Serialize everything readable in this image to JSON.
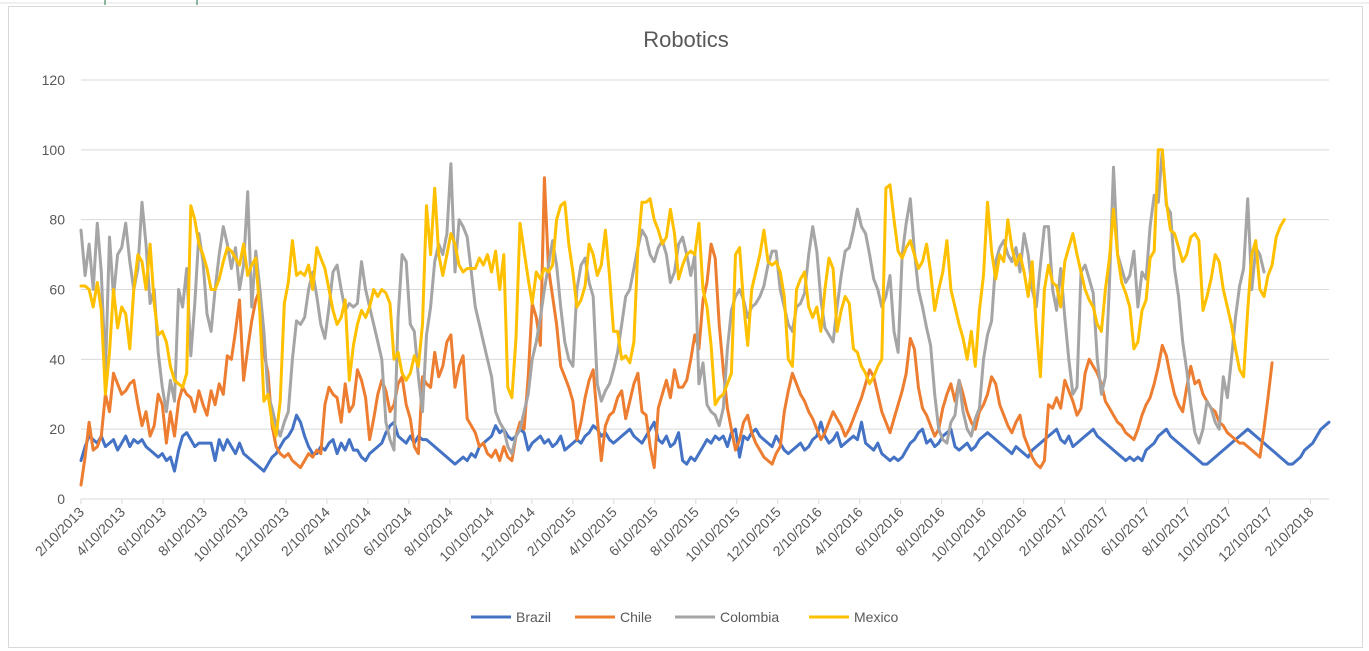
{
  "colors": {
    "Brazil": "#4472c4",
    "Chile": "#ed7d31",
    "Colombia": "#a5a5a5",
    "Mexico": "#ffc000",
    "gridline": "#d9d9d9",
    "axis_text": "#595959"
  },
  "chart_data": {
    "type": "line",
    "title": "Robotics",
    "xlabel": "",
    "ylabel": "",
    "ylim": [
      0,
      120
    ],
    "yticks": [
      0,
      20,
      40,
      60,
      80,
      100,
      120
    ],
    "grid": "horizontal",
    "legend_position": "bottom",
    "x_start": "2/10/2013",
    "x_step": "1 week",
    "x_ticks": [
      "2/10/2013",
      "4/10/2013",
      "6/10/2013",
      "8/10/2013",
      "10/10/2013",
      "12/10/2013",
      "2/10/2014",
      "4/10/2014",
      "6/10/2014",
      "8/10/2014",
      "10/10/2014",
      "12/10/2014",
      "2/10/2015",
      "4/10/2015",
      "6/10/2015",
      "8/10/2015",
      "10/10/2015",
      "12/10/2015",
      "2/10/2016",
      "4/10/2016",
      "6/10/2016",
      "8/10/2016",
      "10/10/2016",
      "12/10/2016",
      "2/10/2017",
      "4/10/2017",
      "6/10/2017",
      "8/10/2017",
      "10/10/2017",
      "12/10/2017",
      "2/10/2018"
    ],
    "series": [
      {
        "name": "Brazil",
        "values": [
          11,
          15,
          18,
          17,
          16,
          18,
          15,
          16,
          17,
          14,
          16,
          18,
          15,
          17,
          16,
          17,
          15,
          14,
          13,
          12,
          13,
          11,
          12,
          8,
          14,
          18,
          19,
          17,
          15,
          16,
          16,
          16,
          16,
          11,
          17,
          14,
          17,
          15,
          13,
          16,
          13,
          12,
          11,
          10,
          9,
          8,
          10,
          12,
          13,
          15,
          17,
          18,
          20,
          24,
          22,
          18,
          15,
          13,
          13,
          15,
          14,
          16,
          17,
          13,
          16,
          14,
          17,
          14,
          14,
          12,
          11,
          13,
          14,
          15,
          16,
          19,
          21,
          22,
          18,
          17,
          16,
          18,
          16,
          18,
          17,
          17,
          16,
          15,
          14,
          13,
          12,
          11,
          10,
          11,
          12,
          11,
          13,
          12,
          15,
          16,
          17,
          18,
          21,
          19,
          20,
          18,
          17,
          18,
          20,
          19,
          14,
          16,
          17,
          18,
          16,
          17,
          15,
          16,
          18,
          14,
          15,
          16,
          17,
          16,
          18,
          19,
          21,
          20,
          18,
          19,
          17,
          16,
          17,
          18,
          19,
          20,
          18,
          17,
          16,
          18,
          20,
          22,
          17,
          16,
          18,
          15,
          16,
          19,
          11,
          10,
          12,
          11,
          13,
          15,
          17,
          16,
          18,
          17,
          18,
          15,
          19,
          20,
          12,
          18,
          17,
          19,
          20,
          18,
          17,
          16,
          15,
          18,
          16,
          14,
          13,
          14,
          15,
          16,
          14,
          15,
          17,
          18,
          22,
          18,
          16,
          17,
          19,
          15,
          16,
          17,
          18,
          17,
          22,
          16,
          15,
          14,
          16,
          13,
          12,
          11,
          12,
          11,
          12,
          14,
          16,
          17,
          19,
          20,
          16,
          17,
          15,
          16,
          18,
          19,
          20,
          15,
          14,
          15,
          16,
          14,
          15,
          17,
          18,
          19,
          18,
          17,
          16,
          15,
          14,
          13,
          15,
          14,
          13,
          12,
          14,
          15,
          16,
          17,
          18,
          19,
          20,
          17,
          16,
          18,
          15,
          16,
          17,
          18,
          19,
          20,
          18,
          17,
          16,
          15,
          14,
          13,
          12,
          11,
          12,
          11,
          12,
          11,
          14,
          15,
          16,
          18,
          19,
          20,
          18,
          17,
          16,
          15,
          14,
          13,
          12,
          11,
          10,
          10,
          11,
          12,
          13,
          14,
          15,
          16,
          17,
          18,
          19,
          20,
          19,
          18,
          17,
          16,
          15,
          14,
          13,
          12,
          11,
          10,
          10,
          11,
          12,
          14,
          15,
          16,
          18,
          20,
          21,
          22
        ]
      },
      {
        "name": "Chile",
        "values": [
          4,
          12,
          22,
          14,
          15,
          18,
          30,
          25,
          36,
          33,
          30,
          31,
          33,
          34,
          27,
          21,
          25,
          18,
          21,
          30,
          27,
          16,
          25,
          18,
          28,
          32,
          30,
          29,
          25,
          31,
          27,
          24,
          31,
          27,
          33,
          30,
          41,
          40,
          48,
          57,
          34,
          43,
          51,
          57,
          60,
          42,
          36,
          21,
          15,
          13,
          12,
          13,
          11,
          10,
          9,
          11,
          13,
          12,
          14,
          13,
          27,
          32,
          30,
          29,
          22,
          33,
          25,
          27,
          37,
          34,
          29,
          17,
          23,
          30,
          34,
          31,
          25,
          27,
          33,
          35,
          27,
          23,
          15,
          13,
          35,
          33,
          32,
          42,
          35,
          38,
          45,
          47,
          32,
          38,
          41,
          23,
          21,
          19,
          15,
          16,
          13,
          12,
          14,
          11,
          15,
          12,
          11,
          18,
          22,
          20,
          35,
          56,
          52,
          44,
          92,
          66,
          58,
          50,
          38,
          35,
          32,
          28,
          17,
          22,
          29,
          34,
          37,
          23,
          11,
          21,
          24,
          25,
          29,
          31,
          23,
          28,
          33,
          36,
          25,
          24,
          15,
          9,
          26,
          30,
          34,
          29,
          37,
          32,
          32,
          34,
          40,
          47,
          43,
          57,
          62,
          73,
          69,
          50,
          37,
          26,
          20,
          14,
          17,
          22,
          24,
          19,
          16,
          14,
          12,
          11,
          10,
          13,
          15,
          25,
          31,
          36,
          33,
          30,
          28,
          25,
          23,
          20,
          17,
          19,
          22,
          25,
          23,
          21,
          18,
          20,
          23,
          26,
          29,
          33,
          37,
          35,
          30,
          25,
          22,
          19,
          23,
          27,
          31,
          36,
          46,
          43,
          32,
          26,
          24,
          21,
          18,
          20,
          26,
          30,
          33,
          28,
          34,
          30,
          25,
          22,
          20,
          25,
          27,
          30,
          35,
          33,
          27,
          24,
          21,
          19,
          22,
          24,
          18,
          15,
          12,
          10,
          9,
          11,
          27,
          26,
          29,
          26,
          34,
          31,
          28,
          24,
          26,
          36,
          40,
          38,
          36,
          33,
          28,
          26,
          24,
          22,
          21,
          19,
          18,
          17,
          20,
          24,
          27,
          29,
          33,
          38,
          44,
          41,
          35,
          30,
          27,
          25,
          32,
          38,
          33,
          34,
          30,
          28,
          26,
          25,
          22,
          21,
          19,
          18,
          17,
          16,
          16,
          15,
          14,
          13,
          12,
          20,
          29,
          39
        ]
      },
      {
        "name": "Colombia",
        "values": [
          77,
          64,
          73,
          60,
          79,
          65,
          36,
          75,
          58,
          70,
          72,
          79,
          68,
          60,
          66,
          85,
          73,
          56,
          60,
          42,
          32,
          25,
          34,
          28,
          60,
          55,
          66,
          41,
          56,
          76,
          68,
          53,
          48,
          60,
          70,
          78,
          73,
          66,
          72,
          60,
          67,
          88,
          55,
          71,
          60,
          48,
          30,
          26,
          21,
          18,
          22,
          25,
          40,
          51,
          50,
          52,
          60,
          65,
          58,
          50,
          46,
          55,
          65,
          67,
          60,
          54,
          56,
          55,
          56,
          68,
          60,
          55,
          50,
          45,
          40,
          22,
          17,
          14,
          52,
          70,
          68,
          50,
          48,
          35,
          25,
          47,
          55,
          68,
          73,
          70,
          76,
          96,
          65,
          80,
          78,
          75,
          65,
          55,
          50,
          45,
          40,
          35,
          25,
          22,
          20,
          15,
          13,
          18,
          20,
          25,
          30,
          40,
          45,
          52,
          60,
          67,
          74,
          67,
          55,
          45,
          40,
          38,
          60,
          67,
          69,
          62,
          58,
          33,
          28,
          31,
          33,
          37,
          42,
          50,
          58,
          60,
          66,
          72,
          77,
          75,
          70,
          68,
          72,
          74,
          70,
          62,
          65,
          73,
          75,
          70,
          64,
          70,
          33,
          39,
          27,
          25,
          24,
          21,
          26,
          43,
          54,
          58,
          60,
          57,
          52,
          55,
          56,
          58,
          61,
          67,
          71,
          71,
          60,
          55,
          50,
          48,
          55,
          56,
          59,
          70,
          78,
          71,
          57,
          49,
          47,
          45,
          55,
          64,
          71,
          72,
          77,
          83,
          78,
          76,
          70,
          63,
          60,
          55,
          58,
          64,
          48,
          42,
          70,
          79,
          86,
          71,
          60,
          55,
          49,
          44,
          30,
          20,
          17,
          16,
          22,
          24,
          34,
          25,
          20,
          18,
          23,
          26,
          40,
          47,
          51,
          68,
          72,
          74,
          70,
          68,
          72,
          65,
          76,
          70,
          60,
          55,
          67,
          78,
          78,
          60,
          54,
          66,
          52,
          40,
          30,
          32,
          65,
          67,
          63,
          59,
          40,
          30,
          35,
          62,
          95,
          70,
          66,
          62,
          64,
          71,
          55,
          65,
          63,
          78,
          87,
          85,
          100,
          84,
          82,
          66,
          58,
          45,
          37,
          27,
          19,
          16,
          20,
          28,
          26,
          22,
          20,
          35,
          29,
          40,
          52,
          61,
          66,
          86,
          60,
          72,
          70,
          65
        ]
      },
      {
        "name": "Mexico",
        "values": [
          61,
          61,
          60,
          55,
          62,
          54,
          30,
          42,
          60,
          49,
          55,
          53,
          43,
          60,
          70,
          68,
          60,
          73,
          56,
          47,
          48,
          45,
          38,
          34,
          33,
          32,
          36,
          84,
          80,
          73,
          70,
          66,
          60,
          60,
          63,
          68,
          72,
          71,
          69,
          67,
          73,
          64,
          67,
          69,
          53,
          28,
          30,
          22,
          18,
          28,
          56,
          62,
          74,
          64,
          65,
          64,
          67,
          60,
          72,
          69,
          66,
          60,
          54,
          50,
          52,
          57,
          34,
          44,
          50,
          54,
          52,
          55,
          60,
          58,
          60,
          59,
          56,
          40,
          42,
          36,
          34,
          36,
          41,
          38,
          50,
          84,
          70,
          89,
          70,
          64,
          70,
          76,
          73,
          67,
          65,
          66,
          66,
          66,
          69,
          67,
          70,
          65,
          71,
          60,
          70,
          32,
          29,
          46,
          79,
          71,
          63,
          56,
          65,
          63,
          66,
          65,
          67,
          80,
          84,
          85,
          73,
          65,
          55,
          57,
          61,
          73,
          70,
          64,
          67,
          77,
          64,
          48,
          48,
          40,
          41,
          39,
          45,
          72,
          85,
          85,
          86,
          80,
          77,
          73,
          75,
          83,
          76,
          63,
          67,
          70,
          71,
          70,
          79,
          60,
          55,
          44,
          27,
          29,
          30,
          33,
          36,
          70,
          72,
          56,
          44,
          60,
          65,
          70,
          77,
          68,
          67,
          68,
          65,
          58,
          40,
          38,
          60,
          63,
          65,
          55,
          52,
          55,
          48,
          60,
          69,
          66,
          48,
          54,
          58,
          56,
          43,
          42,
          38,
          36,
          33,
          35,
          38,
          40,
          89,
          90,
          80,
          71,
          69,
          72,
          74,
          70,
          66,
          68,
          73,
          65,
          54,
          60,
          65,
          74,
          60,
          55,
          50,
          46,
          40,
          48,
          38,
          54,
          64,
          85,
          71,
          63,
          70,
          68,
          80,
          72,
          67,
          70,
          65,
          58,
          68,
          49,
          35,
          60,
          67,
          62,
          61,
          55,
          68,
          72,
          76,
          70,
          65,
          60,
          57,
          55,
          50,
          48,
          60,
          69,
          83,
          70,
          62,
          59,
          55,
          43,
          45,
          54,
          57,
          69,
          71,
          100,
          100,
          85,
          77,
          76,
          72,
          68,
          70,
          75,
          76,
          74,
          54,
          58,
          63,
          70,
          68,
          60,
          55,
          50,
          43,
          37,
          35,
          54,
          70,
          74,
          60,
          58,
          64,
          67,
          75,
          78,
          80
        ]
      }
    ]
  }
}
